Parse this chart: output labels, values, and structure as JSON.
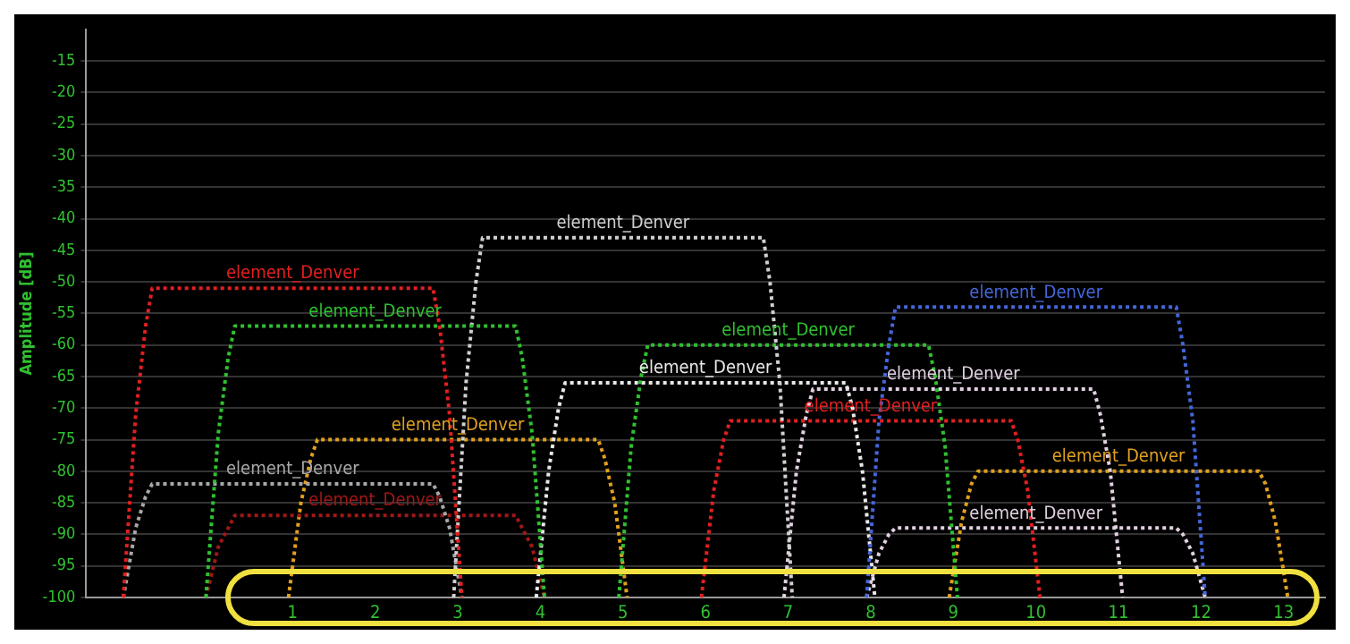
{
  "chart_data": {
    "type": "line",
    "ylabel": "Amplitude [dB]",
    "xlim": [
      -1.5,
      13.5
    ],
    "xticks": [
      1,
      2,
      3,
      4,
      5,
      6,
      7,
      8,
      9,
      10,
      11,
      12,
      13
    ],
    "ylim": [
      -100,
      -10
    ],
    "yticks": [
      -100,
      -95,
      -90,
      -85,
      -80,
      -75,
      -70,
      -65,
      -60,
      -55,
      -50,
      -45,
      -40,
      -35,
      -30,
      -25,
      -20,
      -15
    ],
    "grid": "y",
    "legend": false,
    "marker": "none",
    "line_style": "dotted",
    "series": [
      {
        "name": "element_Denver",
        "color": "#e02020",
        "x": [
          -1.05,
          -0.9,
          -0.78,
          -0.7,
          2.7,
          2.78,
          2.9,
          3.05
        ],
        "values": [
          -100,
          -71,
          -57,
          -51,
          -51,
          -57,
          -71,
          -100
        ]
      },
      {
        "name": "element_Denver",
        "color": "#30c030",
        "x": [
          -0.05,
          0.1,
          0.22,
          0.3,
          3.7,
          3.78,
          3.9,
          4.05
        ],
        "values": [
          -100,
          -74,
          -62,
          -57,
          -57,
          -62,
          -74,
          -100
        ]
      },
      {
        "name": "element_Denver",
        "color": "#d0d0d0",
        "x": [
          2.95,
          3.1,
          3.22,
          3.3,
          6.7,
          6.78,
          6.9,
          7.05
        ],
        "values": [
          -100,
          -66,
          -50,
          -43,
          -43,
          -50,
          -66,
          -100
        ]
      },
      {
        "name": "element_Denver",
        "color": "#4466d8",
        "x": [
          7.95,
          8.1,
          8.22,
          8.3,
          11.7,
          11.78,
          11.9,
          12.05
        ],
        "values": [
          -100,
          -72,
          -60,
          -54,
          -54,
          -60,
          -72,
          -100
        ]
      },
      {
        "name": "element_Denver",
        "color": "#30c030",
        "x": [
          4.95,
          5.1,
          5.22,
          5.3,
          8.7,
          8.78,
          8.9,
          9.05
        ],
        "values": [
          -100,
          -76,
          -65,
          -60,
          -60,
          -65,
          -76,
          -100
        ]
      },
      {
        "name": "element_Denver",
        "color": "#e8e8e8",
        "x": [
          3.95,
          4.1,
          4.22,
          4.3,
          7.7,
          7.78,
          7.9,
          8.05
        ],
        "values": [
          -100,
          -80,
          -70,
          -66,
          -66,
          -70,
          -80,
          -100
        ]
      },
      {
        "name": "element_Denver",
        "color": "#e0d0e0",
        "x": [
          6.95,
          7.1,
          7.22,
          7.3,
          10.7,
          10.78,
          10.9,
          11.05
        ],
        "values": [
          -100,
          -80,
          -71,
          -67,
          -67,
          -71,
          -80,
          -100
        ]
      },
      {
        "name": "element_Denver",
        "color": "#e02020",
        "x": [
          5.95,
          6.1,
          6.22,
          6.3,
          9.7,
          9.78,
          9.9,
          10.05
        ],
        "values": [
          -100,
          -83,
          -75,
          -72,
          -72,
          -75,
          -83,
          -100
        ]
      },
      {
        "name": "element_Denver",
        "color": "#e0a020",
        "x": [
          8.95,
          9.1,
          9.22,
          9.3,
          12.7,
          12.78,
          12.9,
          13.05
        ],
        "values": [
          -100,
          -88,
          -82,
          -80,
          -80,
          -82,
          -88,
          -100
        ]
      },
      {
        "name": "element_Denver",
        "color": "#e0d0e0",
        "x": [
          7.95,
          8.1,
          8.22,
          8.3,
          11.7,
          11.78,
          11.9,
          12.05
        ],
        "values": [
          -100,
          -93,
          -90,
          -89,
          -89,
          -90,
          -93,
          -100
        ]
      },
      {
        "name": "element_Denver",
        "color": "#a8a8a8",
        "x": [
          -1.05,
          -0.9,
          -0.78,
          -0.7,
          2.7,
          2.78,
          2.9,
          3.05
        ],
        "values": [
          -100,
          -89,
          -84,
          -82,
          -82,
          -84,
          -89,
          -100
        ]
      },
      {
        "name": "element_Denver",
        "color": "#a01818",
        "x": [
          -0.05,
          0.1,
          0.22,
          0.3,
          3.7,
          3.78,
          3.9,
          4.05
        ],
        "values": [
          -100,
          -92,
          -89,
          -87,
          -87,
          -89,
          -92,
          -100
        ]
      },
      {
        "name": "element_Denver",
        "color": "#e0a020",
        "x": [
          0.95,
          1.1,
          1.22,
          1.3,
          4.7,
          4.78,
          4.9,
          5.05
        ],
        "values": [
          -100,
          -85,
          -78,
          -75,
          -75,
          -78,
          -85,
          -100
        ]
      }
    ]
  }
}
